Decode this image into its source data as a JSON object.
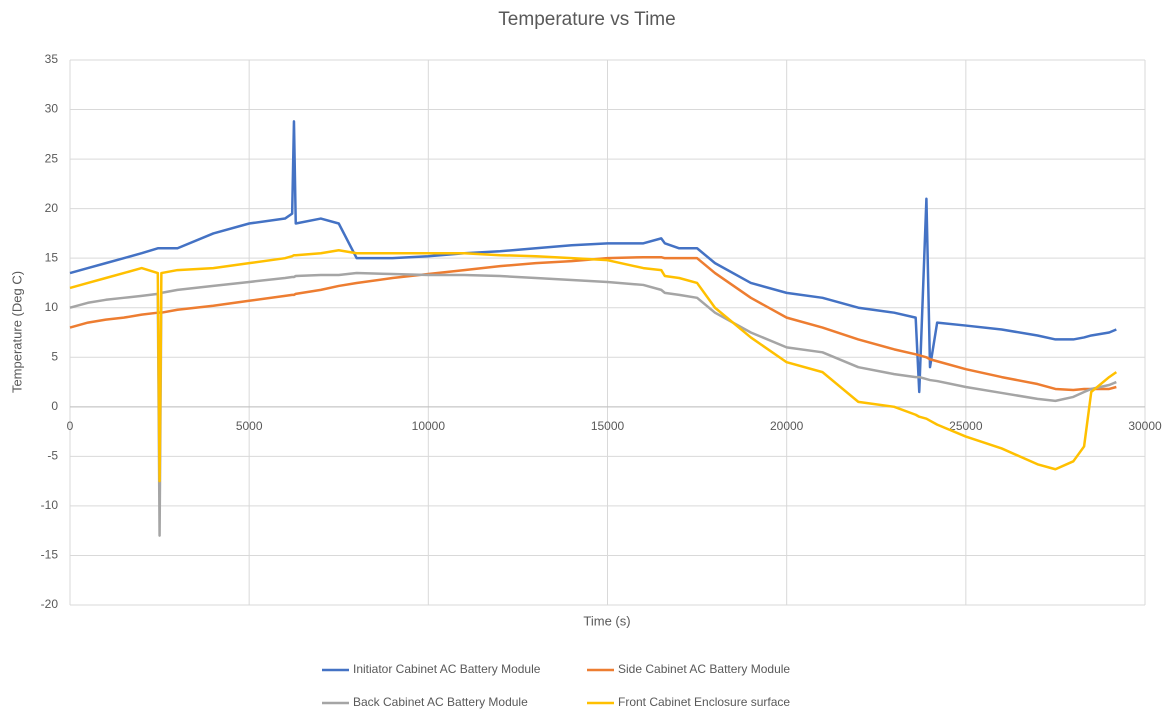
{
  "chart_data": {
    "type": "line",
    "title": "Temperature vs Time",
    "x_label": "Time (s)",
    "y_label": "Temperature (Deg C)",
    "x": [
      0,
      500,
      1000,
      1500,
      2000,
      2450,
      2500,
      2550,
      3000,
      4000,
      5000,
      6000,
      6200,
      6250,
      6300,
      7000,
      7500,
      8000,
      9000,
      10000,
      11000,
      12000,
      13000,
      14000,
      15000,
      16000,
      16500,
      16600,
      17000,
      17500,
      18000,
      19000,
      20000,
      21000,
      22000,
      23000,
      23600,
      23700,
      23900,
      24000,
      24200,
      25000,
      26000,
      27000,
      27500,
      28000,
      28300,
      28500,
      29000,
      29200
    ],
    "series": [
      {
        "name": "Initiator Cabinet AC Battery Module",
        "color": "#4472c4",
        "values": [
          13.5,
          14,
          14.5,
          15,
          15.5,
          16,
          16,
          16,
          16,
          17.5,
          18.5,
          19,
          19.5,
          28.8,
          18.5,
          19,
          18.5,
          15,
          15,
          15.2,
          15.5,
          15.7,
          16,
          16.3,
          16.5,
          16.5,
          17,
          16.5,
          16,
          16,
          14.5,
          12.5,
          11.5,
          11,
          10,
          9.5,
          9,
          1.5,
          21,
          4,
          8.5,
          8.2,
          7.8,
          7.2,
          6.8,
          6.8,
          7,
          7.2,
          7.5,
          7.8
        ]
      },
      {
        "name": "Side Cabinet AC Battery Module",
        "color": "#ed7d31",
        "values": [
          8,
          8.5,
          8.8,
          9,
          9.3,
          9.5,
          9.5,
          9.5,
          9.8,
          10.2,
          10.7,
          11.2,
          11.3,
          11.3,
          11.4,
          11.8,
          12.2,
          12.5,
          13,
          13.4,
          13.8,
          14.2,
          14.5,
          14.7,
          15,
          15.1,
          15.1,
          15,
          15,
          15,
          13.5,
          11,
          9,
          8,
          6.8,
          5.8,
          5.3,
          5.2,
          5,
          4.8,
          4.6,
          3.8,
          3,
          2.3,
          1.8,
          1.7,
          1.8,
          1.8,
          1.8,
          2
        ]
      },
      {
        "name": "Back Cabinet AC Battery Module",
        "color": "#a5a5a5",
        "values": [
          10,
          10.5,
          10.8,
          11,
          11.2,
          11.4,
          -13,
          11.5,
          11.8,
          12.2,
          12.6,
          13,
          13.1,
          13.1,
          13.2,
          13.3,
          13.3,
          13.5,
          13.4,
          13.3,
          13.3,
          13.2,
          13,
          12.8,
          12.6,
          12.3,
          11.8,
          11.5,
          11.3,
          11,
          9.5,
          7.5,
          6,
          5.5,
          4,
          3.3,
          3,
          3,
          2.8,
          2.7,
          2.6,
          2,
          1.4,
          0.8,
          0.6,
          1,
          1.5,
          1.8,
          2.2,
          2.5
        ]
      },
      {
        "name": "Front Cabinet Enclosure surface",
        "color": "#ffc000",
        "values": [
          12,
          12.5,
          13,
          13.5,
          14,
          13.5,
          -7.5,
          13.5,
          13.8,
          14,
          14.5,
          15,
          15.2,
          15.3,
          15.3,
          15.5,
          15.8,
          15.5,
          15.5,
          15.5,
          15.5,
          15.3,
          15.2,
          15,
          14.8,
          14,
          13.8,
          13.2,
          13,
          12.5,
          10,
          7,
          4.5,
          3.5,
          0.5,
          0,
          -0.8,
          -1,
          -1.2,
          -1.4,
          -1.8,
          -3,
          -4.2,
          -5.8,
          -6.3,
          -5.5,
          -4,
          1.5,
          3,
          3.5
        ]
      }
    ],
    "xlim": [
      0,
      30000
    ],
    "xticks": [
      0,
      5000,
      10000,
      15000,
      20000,
      25000,
      30000
    ],
    "ylim": [
      -20,
      35
    ],
    "yticks": [
      -20,
      -15,
      -10,
      -5,
      0,
      5,
      10,
      15,
      20,
      25,
      30,
      35
    ],
    "grid": true,
    "legend": "bottom"
  }
}
